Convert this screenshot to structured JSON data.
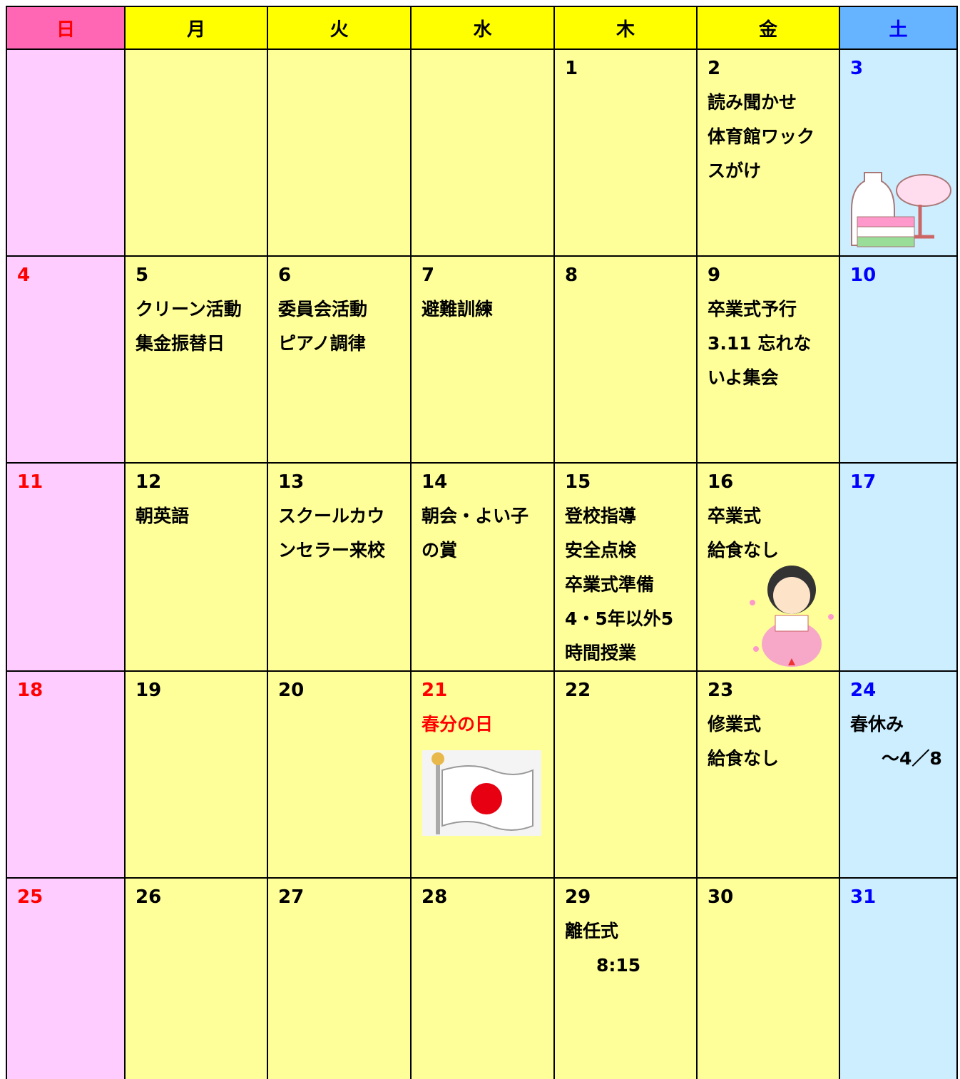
{
  "header": {
    "days": [
      "日",
      "月",
      "火",
      "水",
      "木",
      "金",
      "土"
    ]
  },
  "weeks": [
    {
      "cells": [
        null,
        null,
        null,
        null,
        {
          "date": "1",
          "lines": []
        },
        {
          "date": "2",
          "lines": [
            "読み聞かせ",
            "体育館ワック",
            "スがけ"
          ]
        },
        {
          "date": "3",
          "lines": []
        }
      ]
    },
    {
      "cells": [
        {
          "date": "4",
          "lines": []
        },
        {
          "date": "5",
          "lines": [
            "クリーン活動",
            "集金振替日"
          ]
        },
        {
          "date": "6",
          "lines": [
            "委員会活動",
            "ピアノ調律"
          ]
        },
        {
          "date": "7",
          "lines": [
            "避難訓練"
          ]
        },
        {
          "date": "8",
          "lines": []
        },
        {
          "date": "9",
          "lines": [
            "卒業式予行",
            "3.11 忘れな",
            "いよ集会"
          ]
        },
        {
          "date": "10",
          "lines": []
        }
      ]
    },
    {
      "cells": [
        {
          "date": "11",
          "lines": []
        },
        {
          "date": "12",
          "lines": [
            "朝英語"
          ]
        },
        {
          "date": "13",
          "lines": [
            "スクールカウ",
            "ンセラー来校"
          ]
        },
        {
          "date": "14",
          "lines": [
            "朝会・よい子",
            "の賞"
          ]
        },
        {
          "date": "15",
          "lines": [
            "登校指導",
            "安全点検",
            "卒業式準備",
            "4・5年以外5",
            "時間授業"
          ]
        },
        {
          "date": "16",
          "lines": [
            "卒業式",
            "給食なし"
          ]
        },
        {
          "date": "17",
          "lines": []
        }
      ]
    },
    {
      "cells": [
        {
          "date": "18",
          "lines": []
        },
        {
          "date": "19",
          "lines": []
        },
        {
          "date": "20",
          "lines": []
        },
        {
          "date": "21",
          "lines": [
            "春分の日"
          ],
          "holiday": true
        },
        {
          "date": "22",
          "lines": []
        },
        {
          "date": "23",
          "lines": [
            "修業式",
            "給食なし"
          ]
        },
        {
          "date": "24",
          "lines": [
            "春休み",
            {
              "text": "～4／8",
              "indent": true
            }
          ]
        }
      ]
    },
    {
      "cells": [
        {
          "date": "25",
          "lines": []
        },
        {
          "date": "26",
          "lines": []
        },
        {
          "date": "27",
          "lines": []
        },
        {
          "date": "28",
          "lines": []
        },
        {
          "date": "29",
          "lines": [
            "離任式",
            {
              "text": "8:15",
              "indent": true
            }
          ]
        },
        {
          "date": "30",
          "lines": []
        },
        {
          "date": "31",
          "lines": []
        }
      ]
    }
  ]
}
